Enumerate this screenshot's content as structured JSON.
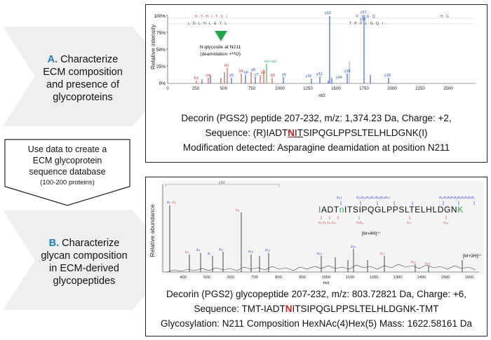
{
  "steps": [
    {
      "letter": "A.",
      "lines": [
        "Characterize",
        "ECM composition",
        "and presence of",
        "glycoproteins"
      ]
    },
    {
      "letter": "B.",
      "lines": [
        "Characterize",
        "glycan composition",
        "in ECM-derived",
        "glycopeptides"
      ]
    }
  ],
  "database_step": {
    "lines": [
      "Use data to create a",
      "ECM glycoprotein",
      "sequence database"
    ],
    "note": "(100-200 proteins)"
  },
  "panel_a": {
    "ylabel": "Relative intensity",
    "xlabel": "m/z",
    "yticks": [
      "100%",
      "75%",
      "50%",
      "25%",
      "0%"
    ],
    "xticks": [
      "0",
      "250",
      "500",
      "750",
      "1000",
      "1250",
      "1500",
      "1750",
      "2000",
      "2250",
      "2500"
    ],
    "glyco_label": "N-glycosite at N211",
    "glyco_sub": "(deamidation +¹⁸O)",
    "peaks": [
      "y13",
      "y17",
      "y16",
      "y18",
      "y15",
      "y14",
      "y12",
      "y11",
      "y9",
      "y7",
      "b8",
      "b6",
      "b5",
      "b4",
      "b3",
      "y5",
      "y6",
      "y8",
      "b9",
      "MH-H2O"
    ],
    "caption": {
      "line1": "Decorin (PGS2) peptide 207-232, m/z: 1,374.23 Da, Charge: +2,",
      "seq_pre": "Sequence: (R)IADT",
      "seq_n": "N",
      "seq_it": "IT",
      "seq_post": "SIPQGLPPSLTELHLDGNK(I)",
      "line3": "Modification detected: Asparagine deamidation at position N211"
    }
  },
  "panel_b": {
    "ylabel": "Relative abundance",
    "xlabel": "m/z",
    "xticks": [
      "400",
      "500",
      "600",
      "700",
      "800",
      "900",
      "1000",
      "1100",
      "1200",
      "1300",
      "1400",
      "1500",
      "1600"
    ],
    "y10_label": "y10",
    "ions": [
      "[M+4H]⁴⁺",
      "[M+3H]³⁺"
    ],
    "seq_letters": [
      "I",
      "A",
      "D",
      "T",
      "n",
      "I",
      "T",
      "S",
      "I",
      "P",
      "Q",
      "G",
      "L",
      "P",
      "P",
      "S",
      "L",
      "T",
      "E",
      "L",
      "H",
      "L",
      "D",
      "G",
      "N",
      "K"
    ],
    "caption": {
      "line1": "Decorin (PGS2) glycopeptide 207-232, m/z: 803.72821 Da, Charge: +6,",
      "seq_pre": "Sequence: TMT-IADT",
      "seq_n": "N",
      "seq_post": "ITSIPQGLPPSLTELHLDGNK-TMT",
      "line3": "Glycosylation: N211  Composition HexNAc(4)Hex(5)  Mass: 1622.58161 Da"
    }
  },
  "colors": {
    "accent": "#1f7fc0",
    "red": "#d42020",
    "blue": "#1a3fd8",
    "green": "#22a84a",
    "chevron": "#efefef"
  }
}
